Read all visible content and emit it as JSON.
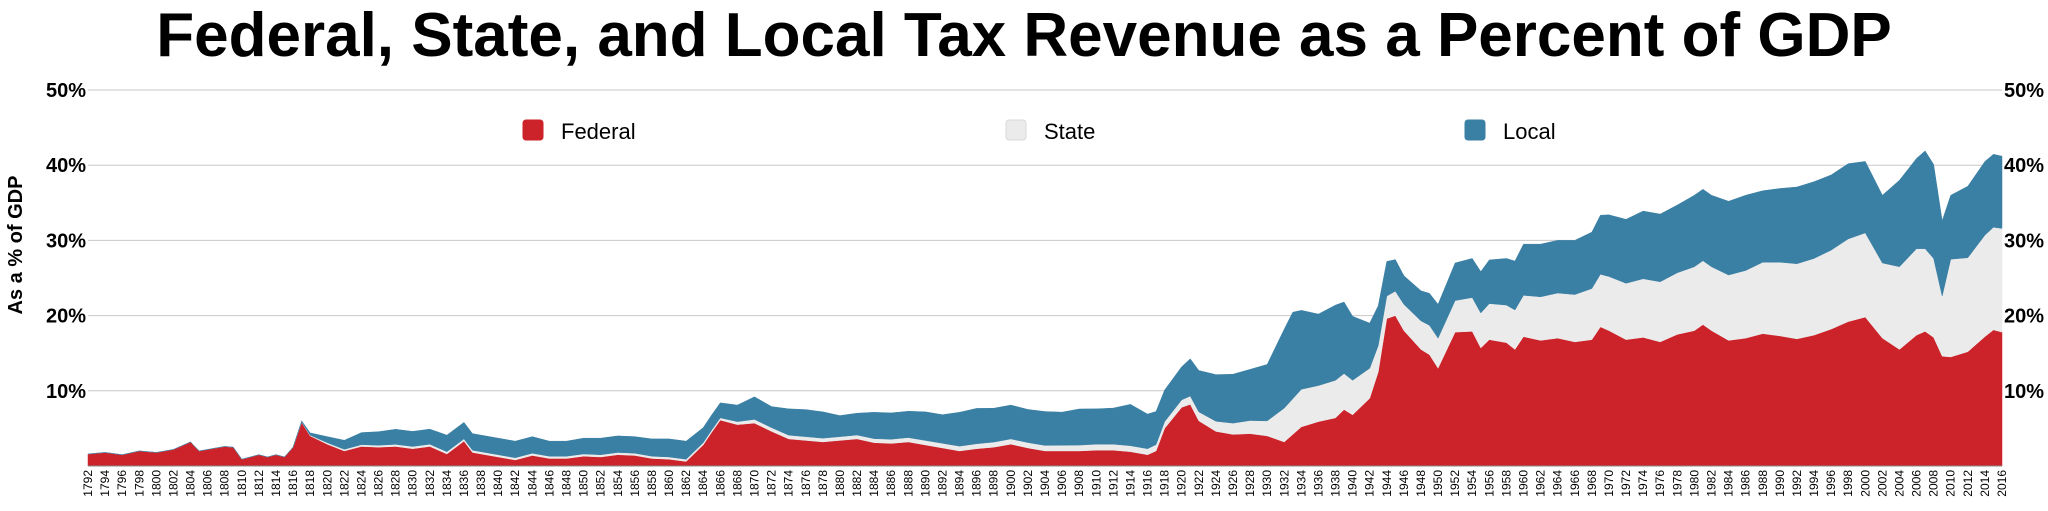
{
  "chart_data": {
    "type": "area",
    "title": "Federal, State, and Local Tax Revenue as a Percent of GDP",
    "ylabel": "As a % of GDP",
    "xlabel": "",
    "ylim": [
      0,
      50
    ],
    "xlim": [
      1792,
      2016
    ],
    "yticks": [
      {
        "value": 10,
        "label": "10%"
      },
      {
        "value": 20,
        "label": "20%"
      },
      {
        "value": 30,
        "label": "30%"
      },
      {
        "value": 40,
        "label": "40%"
      },
      {
        "value": 50,
        "label": "50%"
      }
    ],
    "stacked": true,
    "legend": [
      {
        "name": "Federal",
        "color": "#cc2229"
      },
      {
        "name": "State",
        "color": "#ebebeb"
      },
      {
        "name": "Local",
        "color": "#3a7fa4"
      }
    ],
    "series": [
      {
        "name": "Federal",
        "color": "#cc2229",
        "points": [
          [
            1792,
            1.6
          ],
          [
            1794,
            1.8
          ],
          [
            1796,
            1.5
          ],
          [
            1798,
            2.0
          ],
          [
            1800,
            1.8
          ],
          [
            1802,
            2.2
          ],
          [
            1804,
            3.2
          ],
          [
            1805,
            2.0
          ],
          [
            1806,
            2.2
          ],
          [
            1808,
            2.6
          ],
          [
            1809,
            2.5
          ],
          [
            1810,
            0.9
          ],
          [
            1812,
            1.5
          ],
          [
            1813,
            1.2
          ],
          [
            1814,
            1.5
          ],
          [
            1815,
            1.2
          ],
          [
            1816,
            2.5
          ],
          [
            1817,
            5.8
          ],
          [
            1818,
            4.0
          ],
          [
            1820,
            2.9
          ],
          [
            1822,
            2.0
          ],
          [
            1824,
            2.6
          ],
          [
            1826,
            2.5
          ],
          [
            1828,
            2.6
          ],
          [
            1830,
            2.3
          ],
          [
            1832,
            2.6
          ],
          [
            1834,
            1.6
          ],
          [
            1836,
            3.3
          ],
          [
            1837,
            1.8
          ],
          [
            1838,
            1.6
          ],
          [
            1840,
            1.2
          ],
          [
            1842,
            0.8
          ],
          [
            1844,
            1.4
          ],
          [
            1846,
            1.0
          ],
          [
            1848,
            1.0
          ],
          [
            1850,
            1.3
          ],
          [
            1852,
            1.2
          ],
          [
            1854,
            1.5
          ],
          [
            1856,
            1.4
          ],
          [
            1858,
            1.0
          ],
          [
            1860,
            0.9
          ],
          [
            1862,
            0.6
          ],
          [
            1864,
            2.8
          ],
          [
            1865,
            4.5
          ],
          [
            1866,
            6.1
          ],
          [
            1868,
            5.5
          ],
          [
            1870,
            5.7
          ],
          [
            1872,
            4.6
          ],
          [
            1874,
            3.6
          ],
          [
            1876,
            3.4
          ],
          [
            1878,
            3.2
          ],
          [
            1880,
            3.4
          ],
          [
            1882,
            3.6
          ],
          [
            1884,
            3.1
          ],
          [
            1886,
            3.0
          ],
          [
            1888,
            3.2
          ],
          [
            1890,
            2.8
          ],
          [
            1892,
            2.4
          ],
          [
            1894,
            2.0
          ],
          [
            1896,
            2.3
          ],
          [
            1898,
            2.5
          ],
          [
            1900,
            2.9
          ],
          [
            1902,
            2.4
          ],
          [
            1904,
            2.0
          ],
          [
            1906,
            2.0
          ],
          [
            1908,
            2.0
          ],
          [
            1910,
            2.1
          ],
          [
            1912,
            2.1
          ],
          [
            1914,
            1.9
          ],
          [
            1916,
            1.5
          ],
          [
            1917,
            2.0
          ],
          [
            1918,
            5.0
          ],
          [
            1920,
            7.8
          ],
          [
            1921,
            8.2
          ],
          [
            1922,
            6.0
          ],
          [
            1924,
            4.6
          ],
          [
            1926,
            4.2
          ],
          [
            1928,
            4.3
          ],
          [
            1930,
            4.0
          ],
          [
            1932,
            3.2
          ],
          [
            1934,
            5.2
          ],
          [
            1936,
            5.9
          ],
          [
            1938,
            6.4
          ],
          [
            1939,
            7.5
          ],
          [
            1940,
            6.8
          ],
          [
            1942,
            9.0
          ],
          [
            1943,
            12.5
          ],
          [
            1944,
            19.6
          ],
          [
            1945,
            20.0
          ],
          [
            1946,
            18.0
          ],
          [
            1948,
            15.5
          ],
          [
            1949,
            14.8
          ],
          [
            1950,
            13.0
          ],
          [
            1952,
            17.8
          ],
          [
            1954,
            17.9
          ],
          [
            1955,
            15.7
          ],
          [
            1956,
            16.8
          ],
          [
            1958,
            16.4
          ],
          [
            1959,
            15.5
          ],
          [
            1960,
            17.2
          ],
          [
            1962,
            16.7
          ],
          [
            1964,
            17.0
          ],
          [
            1966,
            16.5
          ],
          [
            1968,
            16.8
          ],
          [
            1969,
            18.5
          ],
          [
            1970,
            18.0
          ],
          [
            1972,
            16.8
          ],
          [
            1974,
            17.1
          ],
          [
            1976,
            16.5
          ],
          [
            1978,
            17.5
          ],
          [
            1980,
            18.0
          ],
          [
            1981,
            18.8
          ],
          [
            1982,
            18.0
          ],
          [
            1984,
            16.7
          ],
          [
            1986,
            17.0
          ],
          [
            1988,
            17.6
          ],
          [
            1990,
            17.3
          ],
          [
            1992,
            16.9
          ],
          [
            1994,
            17.4
          ],
          [
            1996,
            18.2
          ],
          [
            1998,
            19.2
          ],
          [
            2000,
            19.8
          ],
          [
            2002,
            17.0
          ],
          [
            2004,
            15.5
          ],
          [
            2006,
            17.4
          ],
          [
            2007,
            17.9
          ],
          [
            2008,
            17.1
          ],
          [
            2009,
            14.6
          ],
          [
            2010,
            14.5
          ],
          [
            2012,
            15.2
          ],
          [
            2014,
            17.2
          ],
          [
            2015,
            18.1
          ],
          [
            2016,
            17.8
          ]
        ]
      },
      {
        "name": "State",
        "color": "#ebebeb",
        "points": [
          [
            1792,
            0.0
          ],
          [
            1816,
            0.0
          ],
          [
            1820,
            0.2
          ],
          [
            1830,
            0.3
          ],
          [
            1840,
            0.3
          ],
          [
            1850,
            0.3
          ],
          [
            1860,
            0.3
          ],
          [
            1866,
            0.3
          ],
          [
            1870,
            0.5
          ],
          [
            1880,
            0.5
          ],
          [
            1890,
            0.6
          ],
          [
            1900,
            0.7
          ],
          [
            1910,
            0.8
          ],
          [
            1916,
            0.8
          ],
          [
            1920,
            1.0
          ],
          [
            1922,
            1.2
          ],
          [
            1926,
            1.5
          ],
          [
            1930,
            2.0
          ],
          [
            1932,
            4.5
          ],
          [
            1934,
            5.0
          ],
          [
            1936,
            4.8
          ],
          [
            1938,
            5.0
          ],
          [
            1940,
            4.6
          ],
          [
            1942,
            4.0
          ],
          [
            1944,
            3.0
          ],
          [
            1946,
            3.5
          ],
          [
            1948,
            3.8
          ],
          [
            1950,
            4.0
          ],
          [
            1952,
            4.2
          ],
          [
            1954,
            4.5
          ],
          [
            1956,
            4.8
          ],
          [
            1958,
            5.0
          ],
          [
            1960,
            5.5
          ],
          [
            1962,
            5.8
          ],
          [
            1964,
            6.0
          ],
          [
            1966,
            6.3
          ],
          [
            1968,
            6.8
          ],
          [
            1970,
            7.2
          ],
          [
            1972,
            7.5
          ],
          [
            1974,
            7.8
          ],
          [
            1976,
            8.0
          ],
          [
            1978,
            8.2
          ],
          [
            1980,
            8.5
          ],
          [
            1982,
            8.5
          ],
          [
            1984,
            8.7
          ],
          [
            1986,
            9.0
          ],
          [
            1988,
            9.5
          ],
          [
            1990,
            9.8
          ],
          [
            1992,
            10.0
          ],
          [
            1994,
            10.2
          ],
          [
            1996,
            10.5
          ],
          [
            1998,
            11.0
          ],
          [
            2000,
            11.2
          ],
          [
            2002,
            10.0
          ],
          [
            2004,
            11.0
          ],
          [
            2006,
            11.5
          ],
          [
            2007,
            11.0
          ],
          [
            2008,
            10.5
          ],
          [
            2009,
            8.0
          ],
          [
            2010,
            13.0
          ],
          [
            2012,
            12.5
          ],
          [
            2014,
            13.5
          ],
          [
            2016,
            13.8
          ]
        ]
      },
      {
        "name": "Local",
        "color": "#3a7fa4",
        "points": [
          [
            1792,
            0.0
          ],
          [
            1812,
            0.0
          ],
          [
            1816,
            0.0
          ],
          [
            1818,
            0.3
          ],
          [
            1820,
            0.8
          ],
          [
            1822,
            1.2
          ],
          [
            1824,
            1.6
          ],
          [
            1826,
            1.8
          ],
          [
            1828,
            2.0
          ],
          [
            1830,
            2.0
          ],
          [
            1832,
            2.0
          ],
          [
            1834,
            2.2
          ],
          [
            1836,
            2.2
          ],
          [
            1838,
            2.2
          ],
          [
            1840,
            2.2
          ],
          [
            1842,
            2.2
          ],
          [
            1844,
            2.2
          ],
          [
            1846,
            2.0
          ],
          [
            1848,
            2.0
          ],
          [
            1850,
            2.1
          ],
          [
            1852,
            2.2
          ],
          [
            1854,
            2.2
          ],
          [
            1856,
            2.2
          ],
          [
            1858,
            2.3
          ],
          [
            1860,
            2.4
          ],
          [
            1862,
            2.4
          ],
          [
            1864,
            2.0
          ],
          [
            1866,
            2.0
          ],
          [
            1868,
            2.2
          ],
          [
            1870,
            3.0
          ],
          [
            1872,
            2.8
          ],
          [
            1874,
            3.5
          ],
          [
            1876,
            3.6
          ],
          [
            1878,
            3.5
          ],
          [
            1880,
            2.8
          ],
          [
            1882,
            2.9
          ],
          [
            1884,
            3.5
          ],
          [
            1886,
            3.5
          ],
          [
            1888,
            3.5
          ],
          [
            1890,
            3.8
          ],
          [
            1892,
            3.8
          ],
          [
            1894,
            4.5
          ],
          [
            1896,
            4.7
          ],
          [
            1898,
            4.5
          ],
          [
            1900,
            4.5
          ],
          [
            1902,
            4.4
          ],
          [
            1904,
            4.5
          ],
          [
            1906,
            4.4
          ],
          [
            1908,
            4.8
          ],
          [
            1910,
            4.7
          ],
          [
            1912,
            4.8
          ],
          [
            1914,
            5.5
          ],
          [
            1916,
            4.6
          ],
          [
            1918,
            4.2
          ],
          [
            1920,
            4.4
          ],
          [
            1922,
            5.5
          ],
          [
            1924,
            6.2
          ],
          [
            1926,
            6.5
          ],
          [
            1928,
            6.8
          ],
          [
            1930,
            7.5
          ],
          [
            1932,
            10.5
          ],
          [
            1933,
            11.5
          ],
          [
            1934,
            10.5
          ],
          [
            1936,
            9.5
          ],
          [
            1938,
            10.0
          ],
          [
            1939,
            9.5
          ],
          [
            1940,
            8.5
          ],
          [
            1942,
            6.0
          ],
          [
            1944,
            4.6
          ],
          [
            1946,
            3.8
          ],
          [
            1948,
            4.0
          ],
          [
            1950,
            4.5
          ],
          [
            1952,
            5.0
          ],
          [
            1954,
            5.2
          ],
          [
            1956,
            5.8
          ],
          [
            1958,
            6.2
          ],
          [
            1960,
            6.8
          ],
          [
            1962,
            7.0
          ],
          [
            1964,
            7.0
          ],
          [
            1966,
            7.2
          ],
          [
            1968,
            7.5
          ],
          [
            1970,
            8.2
          ],
          [
            1972,
            8.5
          ],
          [
            1974,
            9.0
          ],
          [
            1976,
            9.0
          ],
          [
            1978,
            9.0
          ],
          [
            1980,
            9.5
          ],
          [
            1982,
            9.5
          ],
          [
            1984,
            9.8
          ],
          [
            1986,
            10.0
          ],
          [
            1988,
            9.5
          ],
          [
            1990,
            9.8
          ],
          [
            1992,
            10.2
          ],
          [
            1994,
            10.2
          ],
          [
            1996,
            10.0
          ],
          [
            1998,
            10.0
          ],
          [
            2000,
            9.5
          ],
          [
            2002,
            9.0
          ],
          [
            2004,
            11.5
          ],
          [
            2006,
            12.0
          ],
          [
            2007,
            13.0
          ],
          [
            2008,
            12.5
          ],
          [
            2009,
            10.0
          ],
          [
            2010,
            8.5
          ],
          [
            2012,
            9.5
          ],
          [
            2014,
            9.8
          ],
          [
            2016,
            9.6
          ]
        ]
      }
    ],
    "xticks_from": 1792,
    "xticks_to": 2016,
    "xticks_step": 2
  }
}
